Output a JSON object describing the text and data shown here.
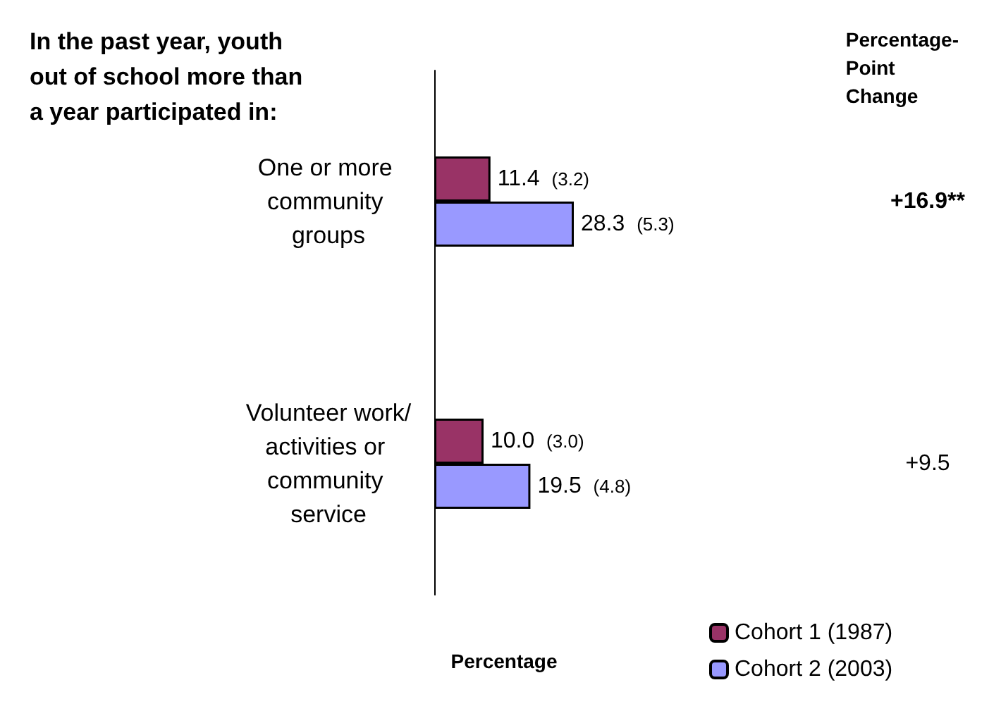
{
  "chart_data": {
    "type": "bar",
    "orientation": "horizontal",
    "title": "In the past year, youth out of school more than a year participated in:",
    "xlabel": "Percentage",
    "categories": [
      "One or more community groups",
      "Volunteer work/activities or community service"
    ],
    "series": [
      {
        "name": "Cohort 1 (1987)",
        "color": "#993366",
        "values": [
          11.4,
          10.0
        ],
        "value_labels": [
          "11.4 (3.2)",
          "10.0 (3.0)"
        ]
      },
      {
        "name": "Cohort 2 (2003)",
        "color": "#9999ff",
        "values": [
          28.3,
          19.5
        ],
        "value_labels": [
          "28.3 (5.3)",
          "19.5 (4.8)"
        ]
      }
    ],
    "annotations": [
      "Percentage-Point Change",
      "+16.9**",
      "+9.5"
    ],
    "tick_labels": "y",
    "grid": false,
    "legend": "bottom right"
  }
}
